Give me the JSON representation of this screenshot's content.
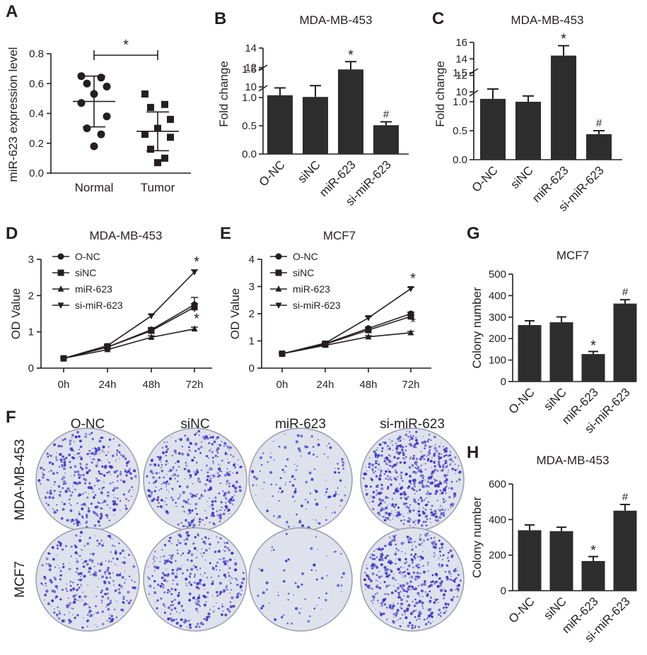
{
  "colors": {
    "ink": "#231f20",
    "bar": "#2d2d2d",
    "plate_bg": "#dfe2ec",
    "plate_edge": "#9a9cad",
    "colony": "#3d33c6"
  },
  "chart_data": [
    {
      "panel": "A",
      "type": "scatter",
      "title": "",
      "xlabel": "",
      "ylabel": "miR-623 expression level",
      "ylim": [
        0,
        0.8
      ],
      "yticks": [
        0,
        0.2,
        0.4,
        0.6,
        0.8
      ],
      "categories": [
        "Normal",
        "Tumor"
      ],
      "groups": [
        {
          "category": "Normal",
          "marker": "circle",
          "points": [
            0.65,
            0.64,
            0.6,
            0.58,
            0.53,
            0.47,
            0.38,
            0.3,
            0.26,
            0.18
          ],
          "mean": 0.48,
          "sd": 0.17
        },
        {
          "category": "Tumor",
          "marker": "square",
          "points": [
            0.53,
            0.46,
            0.44,
            0.36,
            0.3,
            0.26,
            0.24,
            0.16,
            0.1,
            0.07
          ],
          "mean": 0.28,
          "sd": 0.13
        }
      ],
      "significance": {
        "label": "*",
        "between": [
          "Normal",
          "Tumor"
        ],
        "y": 0.8
      }
    },
    {
      "panel": "B",
      "type": "bar",
      "title": "MDA-MB-453",
      "xlabel": "",
      "ylabel": "Fold change",
      "axis_break": true,
      "lower_ylim": [
        0,
        1.5
      ],
      "lower_yticks": [
        0,
        0.5,
        1.0,
        1.5
      ],
      "upper_ylim": [
        10,
        14
      ],
      "upper_yticks": [
        10,
        12,
        14
      ],
      "categories": [
        "O-NC",
        "siNC",
        "miR-623",
        "si-miR-623"
      ],
      "values": [
        1.04,
        1.01,
        11.8,
        0.51
      ],
      "errors": [
        0.13,
        0.2,
        0.8,
        0.06
      ],
      "annotations": [
        "",
        "",
        "*",
        "#"
      ]
    },
    {
      "panel": "C",
      "type": "bar",
      "title": "MDA-MB-453",
      "xlabel": "",
      "ylabel": "Fold change",
      "axis_break": true,
      "lower_ylim": [
        0,
        1.5
      ],
      "lower_yticks": [
        0,
        0.5,
        1.0,
        1.5
      ],
      "upper_ylim": [
        10,
        16
      ],
      "upper_yticks": [
        10,
        12,
        14,
        16
      ],
      "categories": [
        "O-NC",
        "siNC",
        "miR-623",
        "si-miR-623"
      ],
      "values": [
        1.05,
        1.0,
        14.4,
        0.44
      ],
      "errors": [
        0.17,
        0.1,
        1.2,
        0.06
      ],
      "annotations": [
        "",
        "",
        "*",
        "#"
      ]
    },
    {
      "panel": "D",
      "type": "line",
      "title": "MDA-MB-453",
      "xlabel": "",
      "ylabel": "OD Value",
      "ylim": [
        0,
        3
      ],
      "yticks": [
        0,
        1,
        2,
        3
      ],
      "x": [
        "0h",
        "24h",
        "48h",
        "72h"
      ],
      "series": [
        {
          "name": "O-NC",
          "marker": "circle",
          "values": [
            0.27,
            0.58,
            1.06,
            1.75
          ],
          "errors": [
            0.02,
            0.04,
            0.06,
            0.2
          ]
        },
        {
          "name": "siNC",
          "marker": "square",
          "values": [
            0.27,
            0.58,
            1.03,
            1.68
          ],
          "errors": [
            0.02,
            0.03,
            0.05,
            0.1
          ]
        },
        {
          "name": "miR-623",
          "marker": "triangle-up",
          "values": [
            0.27,
            0.51,
            0.85,
            1.08
          ],
          "errors": [
            0.02,
            0.03,
            0.04,
            0.05
          ]
        },
        {
          "name": "si-miR-623",
          "marker": "triangle-down",
          "values": [
            0.27,
            0.62,
            1.44,
            2.65
          ],
          "errors": [
            0.02,
            0.03,
            0.04,
            0.06
          ]
        }
      ],
      "annotations": [
        {
          "series": "si-miR-623",
          "x": "72h",
          "label": "*"
        },
        {
          "series": "miR-623",
          "x": "72h",
          "label": "*"
        }
      ],
      "legend": "top-left"
    },
    {
      "panel": "E",
      "type": "line",
      "title": "MCF7",
      "xlabel": "",
      "ylabel": "OD Value",
      "ylim": [
        0,
        4
      ],
      "yticks": [
        0,
        1,
        2,
        3,
        4
      ],
      "x": [
        "0h",
        "24h",
        "48h",
        "72h"
      ],
      "series": [
        {
          "name": "O-NC",
          "marker": "circle",
          "values": [
            0.53,
            0.9,
            1.46,
            2.0
          ],
          "errors": [
            0.02,
            0.03,
            0.05,
            0.06
          ]
        },
        {
          "name": "siNC",
          "marker": "square",
          "values": [
            0.53,
            0.88,
            1.4,
            1.9
          ],
          "errors": [
            0.02,
            0.03,
            0.04,
            0.05
          ]
        },
        {
          "name": "miR-623",
          "marker": "triangle-up",
          "values": [
            0.53,
            0.84,
            1.15,
            1.3
          ],
          "errors": [
            0.02,
            0.03,
            0.04,
            0.05
          ]
        },
        {
          "name": "si-miR-623",
          "marker": "triangle-down",
          "values": [
            0.53,
            0.92,
            1.85,
            2.92
          ],
          "errors": [
            0.02,
            0.03,
            0.04,
            0.05
          ]
        }
      ],
      "annotations": [
        {
          "series": "si-miR-623",
          "x": "72h",
          "label": "*"
        },
        {
          "series": "miR-623",
          "x": "72h",
          "label": "*"
        }
      ],
      "legend": "top-left"
    },
    {
      "panel": "G",
      "type": "bar",
      "title": "MCF7",
      "xlabel": "",
      "ylabel": "Colony number",
      "ylim": [
        0,
        500
      ],
      "yticks": [
        0,
        100,
        200,
        300,
        400,
        500
      ],
      "categories": [
        "O-NC",
        "siNC",
        "miR-623",
        "si-miR-623"
      ],
      "values": [
        263,
        276,
        128,
        363
      ],
      "errors": [
        20,
        25,
        12,
        18
      ],
      "annotations": [
        "",
        "",
        "*",
        "#"
      ]
    },
    {
      "panel": "H",
      "type": "bar",
      "title": "MDA-MB-453",
      "xlabel": "",
      "ylabel": "Colony number",
      "ylim": [
        0,
        600
      ],
      "yticks": [
        0,
        200,
        400,
        600
      ],
      "categories": [
        "O-NC",
        "siNC",
        "miR-623",
        "si-miR-623"
      ],
      "values": [
        340,
        335,
        167,
        450
      ],
      "errors": [
        30,
        22,
        25,
        35
      ],
      "annotations": [
        "",
        "",
        "*",
        "#"
      ]
    }
  ],
  "plates": {
    "panel": "F",
    "columns": [
      "O-NC",
      "siNC",
      "miR-623",
      "si-miR-623"
    ],
    "rows": [
      "MDA-MB-453",
      "MCF7"
    ],
    "density": [
      [
        0.62,
        0.58,
        0.22,
        0.95
      ],
      [
        0.5,
        0.55,
        0.1,
        0.78
      ]
    ]
  },
  "panel_letters": {
    "a": "A",
    "b": "B",
    "c": "C",
    "d": "D",
    "e": "E",
    "f": "F",
    "g": "G",
    "h": "H"
  }
}
